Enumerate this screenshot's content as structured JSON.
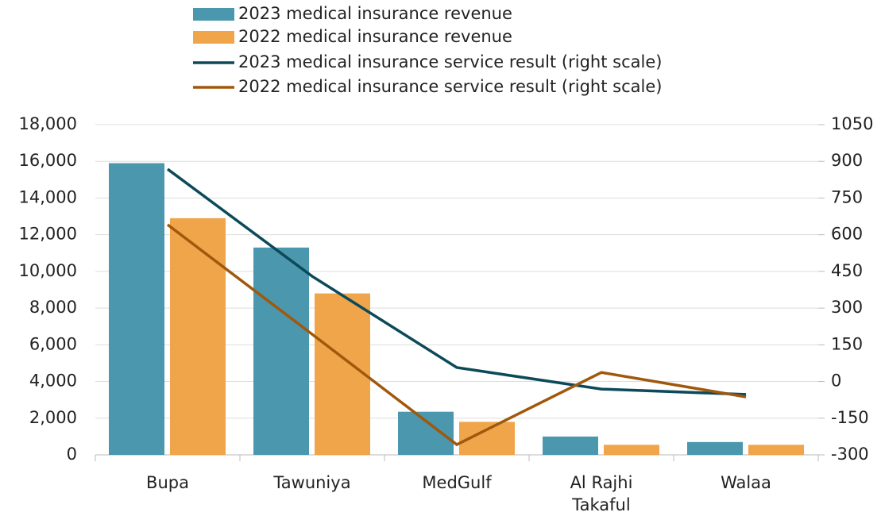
{
  "chart_data": {
    "type": "bar",
    "categories": [
      "Bupa",
      "Tawuniya",
      "MedGulf",
      "Al Rajhi Takaful",
      "Walaa"
    ],
    "series": [
      {
        "name": "2023 medical insurance revenue",
        "color": "#4a97ae",
        "type": "bar",
        "values": [
          15900,
          11300,
          2350,
          1000,
          700
        ]
      },
      {
        "name": "2022 medical insurance revenue",
        "color": "#f0a54a",
        "type": "bar",
        "values": [
          12900,
          8800,
          1800,
          550,
          550
        ]
      },
      {
        "name": "2023 medical insurance service result (right scale)",
        "color": "#0c4a5a",
        "type": "line",
        "axis": "y2",
        "values": [
          868,
          430,
          57,
          -31,
          -53
        ]
      },
      {
        "name": "2022 medical insurance service result (right scale)",
        "color": "#a0580c",
        "type": "line",
        "axis": "y2",
        "values": [
          641,
          193,
          -258,
          37,
          -63
        ]
      }
    ],
    "ylim": [
      0,
      18000
    ],
    "yticks": [
      0,
      {
        "value": 2000,
        "label": "2,000"
      },
      {
        "value": 4000,
        "label": "4,000"
      },
      {
        "value": 6000,
        "label": "6,000"
      },
      {
        "value": 8000,
        "label": "8,000"
      },
      {
        "value": 10000,
        "label": "10,000"
      },
      {
        "value": 12000,
        "label": "12,000"
      },
      {
        "value": 14000,
        "label": "14,000"
      },
      {
        "value": 16000,
        "label": "16,000"
      },
      {
        "value": 18000,
        "label": "18,000"
      }
    ],
    "y2lim": [
      -300,
      1050
    ],
    "y2ticks": [
      -300,
      -150,
      0,
      150,
      300,
      450,
      600,
      750,
      900,
      1050
    ],
    "grid": true
  }
}
